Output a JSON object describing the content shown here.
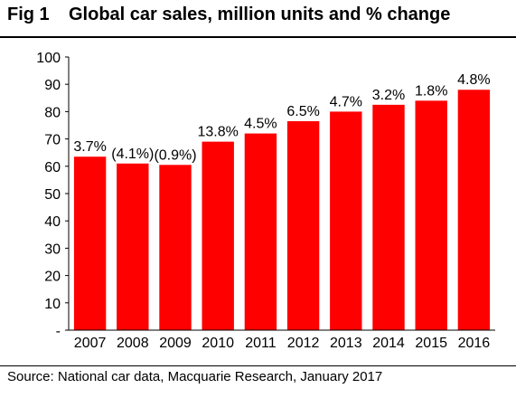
{
  "figure": {
    "label": "Fig 1",
    "title": "Global car sales, million units and % change",
    "source": "Source: National car data, Macquarie Research, January 2017"
  },
  "colors": {
    "bar": "#ff0000",
    "axis": "#000000",
    "text": "#000000"
  },
  "chart_data": {
    "type": "bar",
    "categories": [
      "2007",
      "2008",
      "2009",
      "2010",
      "2011",
      "2012",
      "2013",
      "2014",
      "2015",
      "2016"
    ],
    "values": [
      63.5,
      61,
      60.5,
      69,
      72,
      76.5,
      80,
      82.5,
      84,
      88
    ],
    "data_labels": [
      "3.7%",
      "(4.1%)",
      "(0.9%)",
      "13.8%",
      "4.5%",
      "6.5%",
      "4.7%",
      "3.2%",
      "1.8%",
      "4.8%"
    ],
    "ylim": [
      0,
      100
    ],
    "y_ticks": [
      0,
      10,
      20,
      30,
      40,
      50,
      60,
      70,
      80,
      90,
      100
    ],
    "y_tick_labels": [
      "-",
      "10",
      "20",
      "30",
      "40",
      "50",
      "60",
      "70",
      "80",
      "90",
      "100"
    ],
    "grid": false,
    "legend": "none",
    "xlabel": "",
    "ylabel": ""
  }
}
